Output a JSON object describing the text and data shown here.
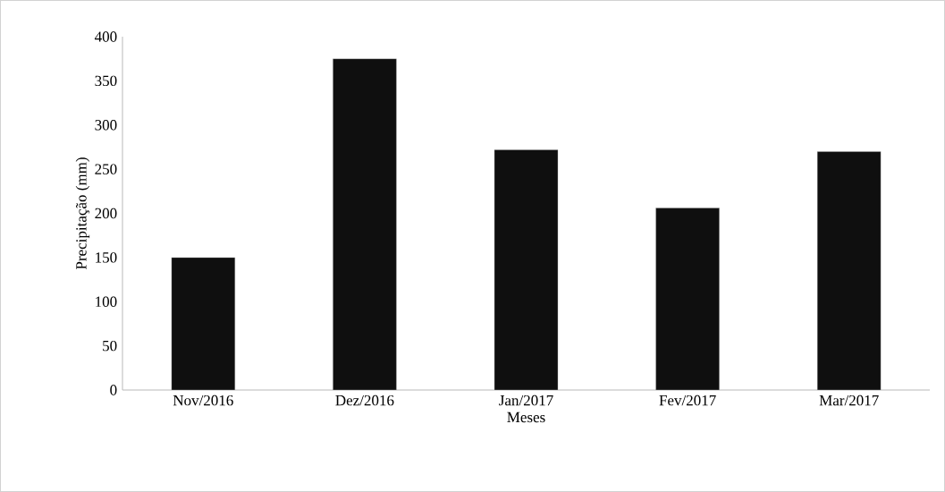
{
  "chart_data": {
    "type": "bar",
    "categories": [
      "Nov/2016",
      "Dez/2016",
      "Jan/2017",
      "Fev/2017",
      "Mar/2017"
    ],
    "values": [
      150,
      375,
      272,
      206,
      270
    ],
    "color": "#0f0f0f",
    "xlabel": "Meses",
    "ylabel": "Precipitação (mm)",
    "ylim": [
      0,
      400
    ],
    "yticks": [
      0,
      50,
      100,
      150,
      200,
      250,
      300,
      350,
      400
    ]
  }
}
